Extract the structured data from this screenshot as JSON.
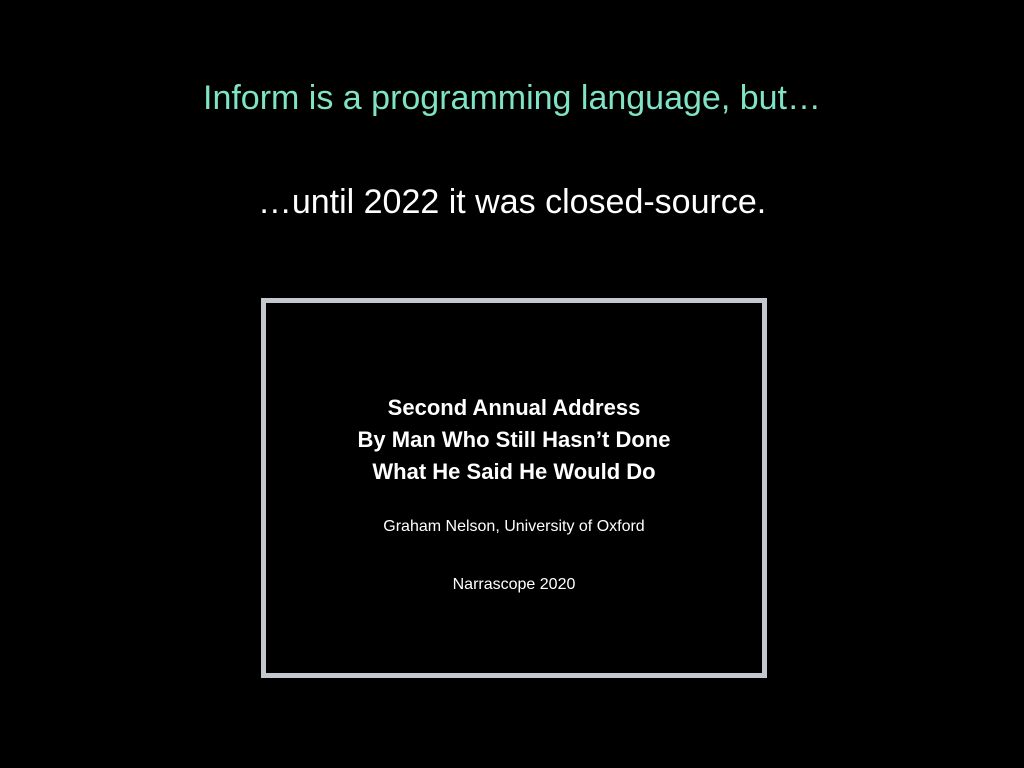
{
  "slide": {
    "heading": "Inform is a programming language, but…",
    "subheading": "…until 2022 it was closed-source.",
    "colors": {
      "background": "#000000",
      "heading": "#7fe3c4",
      "text": "#ffffff",
      "frame": "#c5c7cf"
    }
  },
  "inset_slide": {
    "title_lines": [
      "Second Annual Address",
      "By Man Who Still Hasn’t Done",
      "What He Said He Would Do"
    ],
    "author": "Graham Nelson, University of Oxford",
    "event": "Narrascope 2020"
  }
}
